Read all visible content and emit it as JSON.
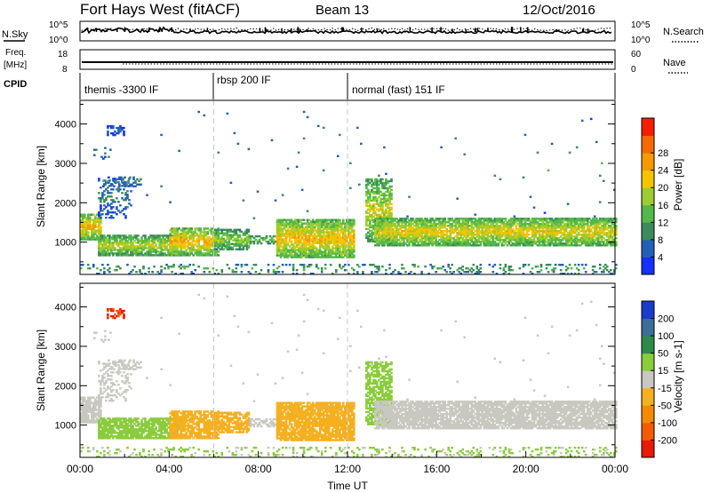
{
  "header": {
    "title": "Fort Hays West (fitACF)",
    "beam": "Beam 13",
    "date": "12/Oct/2016"
  },
  "top_panels": {
    "nsky": {
      "label": "N.Sky",
      "right_label": "N.Search",
      "left_ticks": [
        "10^5",
        "10^0"
      ],
      "right_ticks": [
        "10^5",
        "10^0"
      ]
    },
    "freq": {
      "label": "Freq.",
      "unit": "[MHz]",
      "right_label": "Nave",
      "left_ticks": [
        "18",
        "8"
      ],
      "right_ticks": [
        "60",
        "0"
      ]
    },
    "cpid": {
      "label": "CPID",
      "modes": [
        {
          "name": "themis -3300 IF",
          "start_hour": 0
        },
        {
          "name": "rbsp 200 IF",
          "start_hour": 6
        },
        {
          "name": "normal (fast) 151 IF",
          "start_hour": 12
        }
      ]
    }
  },
  "chart_data": [
    {
      "type": "heatmap",
      "name": "power",
      "ylabel": "Slant Range [km]",
      "xlim": [
        0,
        24
      ],
      "ylim": [
        180,
        4600
      ],
      "yticks": [
        1000,
        2000,
        3000,
        4000
      ],
      "colorbar": {
        "label": "Power [dB]",
        "ticks": [
          4,
          8,
          12,
          16,
          20,
          24,
          28
        ],
        "colors": [
          "#1530ff",
          "#2060b8",
          "#3d8a5a",
          "#52b84a",
          "#9ccc2e",
          "#f5c400",
          "#f59a00",
          "#f56a00",
          "#f51e00"
        ]
      }
    },
    {
      "type": "heatmap",
      "name": "velocity",
      "ylabel": "Slant Range [km]",
      "xlim": [
        0,
        24
      ],
      "ylim": [
        180,
        4600
      ],
      "yticks": [
        1000,
        2000,
        3000,
        4000
      ],
      "colorbar": {
        "label": "Velocity [m s-1]",
        "ticks": [
          200,
          100,
          50,
          15,
          -15,
          -50,
          -100,
          -200
        ],
        "colors": [
          "#1a3ccc",
          "#3a6e98",
          "#2e8a48",
          "#8acc3c",
          "#c8c8c0",
          "#f5b020",
          "#f58a00",
          "#f55a00",
          "#e81a00"
        ]
      }
    }
  ],
  "xaxis": {
    "ticks": [
      "00:00",
      "04:00",
      "08:00",
      "12:00",
      "16:00",
      "20:00",
      "00:00"
    ],
    "label": "Time UT"
  },
  "scatter_regions": [
    {
      "t0": 0.0,
      "t1": 0.9,
      "r0": 1050,
      "r1": 1700,
      "pw": 24,
      "vel": 0,
      "dens": 0.85
    },
    {
      "t0": 0.8,
      "t1": 2.3,
      "r0": 1600,
      "r1": 2600,
      "pw": 8,
      "vel": 0,
      "dens": 0.25
    },
    {
      "t0": 1.0,
      "t1": 2.7,
      "r0": 2400,
      "r1": 2650,
      "pw": 10,
      "vel": 0,
      "dens": 0.4
    },
    {
      "t0": 1.2,
      "t1": 2.0,
      "r0": 3700,
      "r1": 3950,
      "pw": 6,
      "vel": -200,
      "dens": 0.5
    },
    {
      "t0": 0.6,
      "t1": 1.4,
      "r0": 3100,
      "r1": 3400,
      "pw": 8,
      "vel": 0,
      "dens": 0.2
    },
    {
      "t0": 0.8,
      "t1": 4.5,
      "r0": 650,
      "r1": 1150,
      "pw": 20,
      "vel": 40,
      "dens": 0.8
    },
    {
      "t0": 4.0,
      "t1": 6.2,
      "r0": 650,
      "r1": 1350,
      "pw": 24,
      "vel": -35,
      "dens": 0.85
    },
    {
      "t0": 6.0,
      "t1": 7.6,
      "r0": 800,
      "r1": 1300,
      "pw": 18,
      "vel": -35,
      "dens": 0.75
    },
    {
      "t0": 7.6,
      "t1": 8.8,
      "r0": 950,
      "r1": 1150,
      "pw": 16,
      "vel": 0,
      "dens": 0.55
    },
    {
      "t0": 8.8,
      "t1": 12.3,
      "r0": 600,
      "r1": 1550,
      "pw": 24,
      "vel": -40,
      "dens": 0.85
    },
    {
      "t0": 12.8,
      "t1": 14.0,
      "r0": 1000,
      "r1": 2600,
      "pw": 20,
      "vel": 30,
      "dens": 0.7
    },
    {
      "t0": 13.2,
      "t1": 24.0,
      "r0": 900,
      "r1": 1600,
      "pw": 22,
      "vel": 0,
      "dens": 0.85
    },
    {
      "t0": 0.0,
      "t1": 24.0,
      "r0": 180,
      "r1": 450,
      "pw": 12,
      "vel": 20,
      "dens": 0.18
    },
    {
      "t0": 2.0,
      "t1": 24.0,
      "r0": 1500,
      "r1": 4300,
      "pw": 10,
      "vel": 0,
      "dens": 0.004
    }
  ]
}
